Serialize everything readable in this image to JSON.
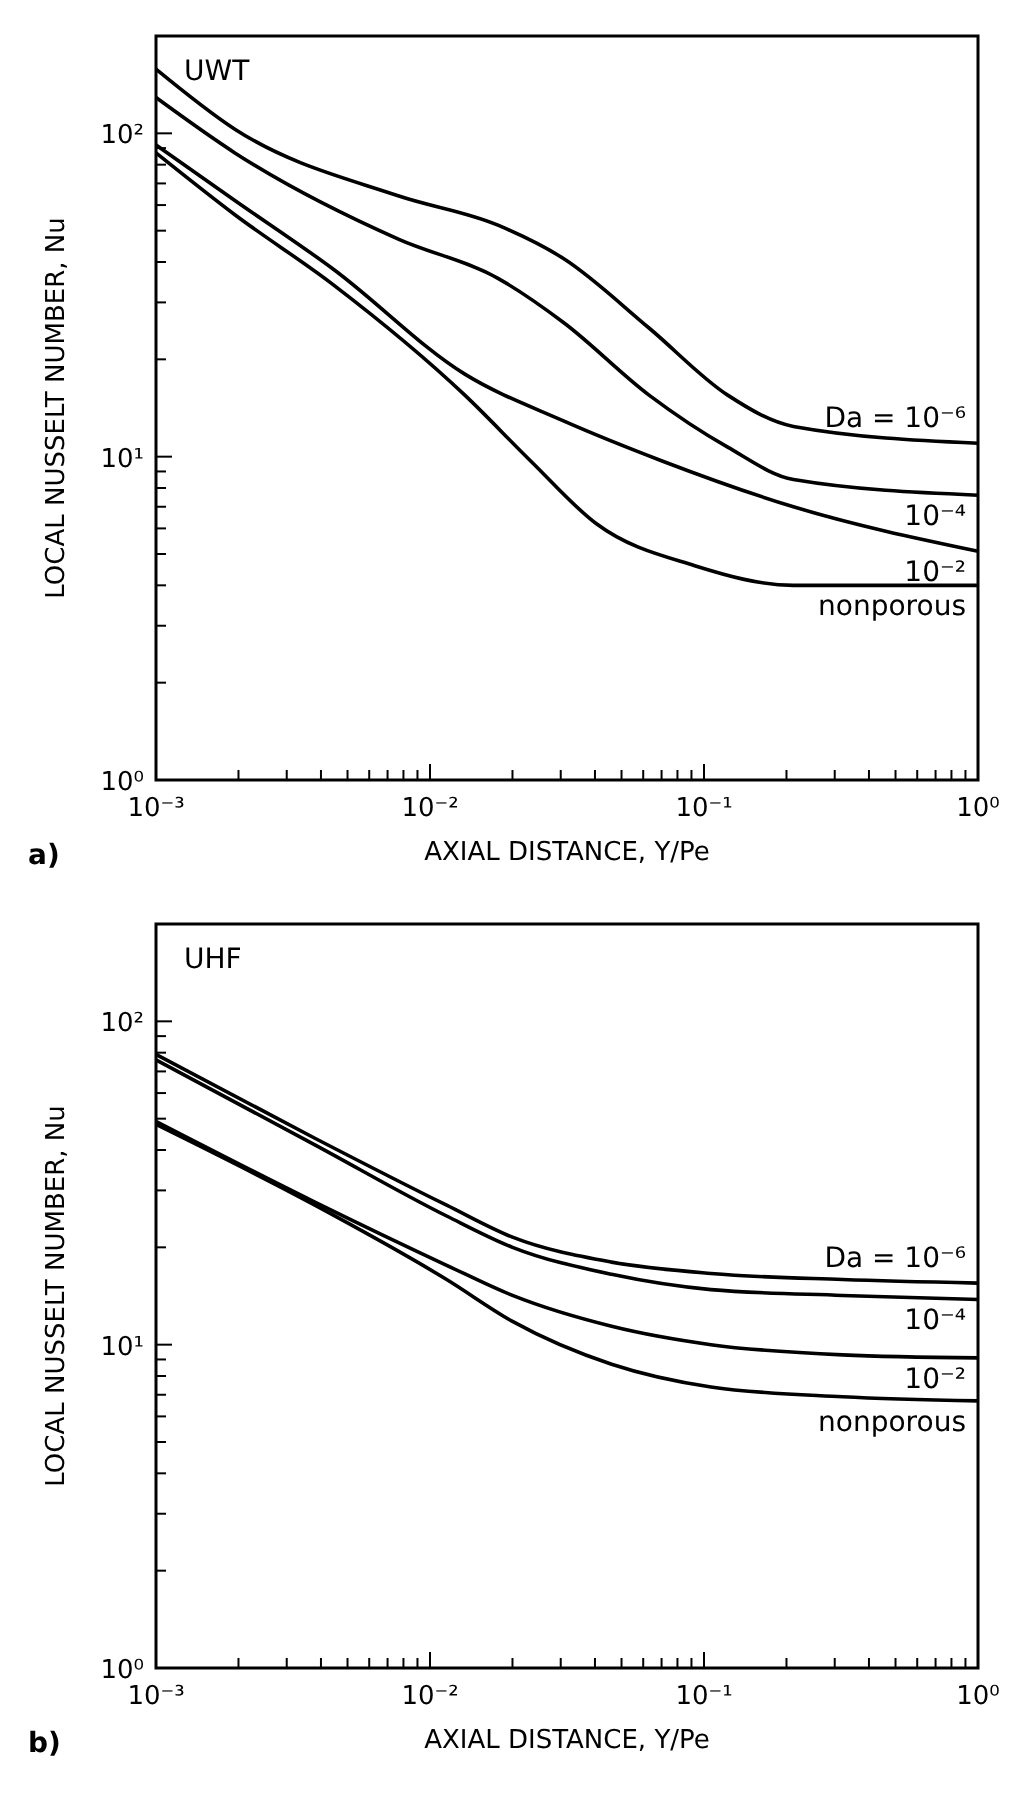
{
  "chart_data": [
    {
      "type": "line",
      "xlabel": "AXIAL DISTANCE, Y/Pe",
      "ylabel": "LOCAL NUSSELT NUMBER, Nu",
      "log": "xy",
      "annotations": [
        "UWT",
        "a)"
      ],
      "xlim": [
        0.001,
        1
      ],
      "ylim": [
        1,
        200
      ],
      "xticks": [
        {
          "value": 0.001,
          "label": "10⁻³"
        },
        {
          "value": 0.002,
          "label": null
        },
        {
          "value": 0.003,
          "label": null
        },
        {
          "value": 0.004,
          "label": null
        },
        {
          "value": 0.005,
          "label": null
        },
        {
          "value": 0.006,
          "label": null
        },
        {
          "value": 0.007,
          "label": null
        },
        {
          "value": 0.008,
          "label": null
        },
        {
          "value": 0.009,
          "label": null
        },
        {
          "value": 0.01,
          "label": "10⁻²"
        },
        {
          "value": 0.02,
          "label": null
        },
        {
          "value": 0.03,
          "label": null
        },
        {
          "value": 0.04,
          "label": null
        },
        {
          "value": 0.05,
          "label": null
        },
        {
          "value": 0.06,
          "label": null
        },
        {
          "value": 0.07,
          "label": null
        },
        {
          "value": 0.08,
          "label": null
        },
        {
          "value": 0.09,
          "label": null
        },
        {
          "value": 0.1,
          "label": "10⁻¹"
        },
        {
          "value": 0.2,
          "label": null
        },
        {
          "value": 0.3,
          "label": null
        },
        {
          "value": 0.4,
          "label": null
        },
        {
          "value": 0.5,
          "label": null
        },
        {
          "value": 0.6,
          "label": null
        },
        {
          "value": 0.7,
          "label": null
        },
        {
          "value": 0.8,
          "label": null
        },
        {
          "value": 0.9,
          "label": null
        },
        {
          "value": 1,
          "label": "10⁰"
        }
      ],
      "yticks": [
        {
          "value": 1,
          "label": "10⁰"
        },
        {
          "value": 2,
          "label": null
        },
        {
          "value": 3,
          "label": null
        },
        {
          "value": 4,
          "label": null
        },
        {
          "value": 5,
          "label": null
        },
        {
          "value": 6,
          "label": null
        },
        {
          "value": 7,
          "label": null
        },
        {
          "value": 8,
          "label": null
        },
        {
          "value": 9,
          "label": null
        },
        {
          "value": 10,
          "label": "10¹"
        },
        {
          "value": 20,
          "label": null
        },
        {
          "value": 30,
          "label": null
        },
        {
          "value": 40,
          "label": null
        },
        {
          "value": 50,
          "label": null
        },
        {
          "value": 60,
          "label": null
        },
        {
          "value": 70,
          "label": null
        },
        {
          "value": 80,
          "label": null
        },
        {
          "value": 90,
          "label": null
        },
        {
          "value": 100,
          "label": "10²"
        }
      ],
      "series": [
        {
          "name": "Da = 10⁻⁶",
          "color": "#000000",
          "x": [
            0.001,
            0.00194,
            0.0077,
            0.0177,
            0.0307,
            0.063,
            0.122,
            0.212,
            1
          ],
          "values": [
            158,
            103,
            64,
            52,
            41,
            25,
            15.5,
            12.4,
            11
          ]
        },
        {
          "name": "10⁻⁴",
          "color": "#000000",
          "x": [
            0.001,
            0.00194,
            0.0077,
            0.0177,
            0.0307,
            0.063,
            0.122,
            0.212,
            1
          ],
          "values": [
            129,
            87,
            47,
            35.6,
            26,
            15.5,
            10.7,
            8.5,
            7.6
          ]
        },
        {
          "name": "10⁻²",
          "color": "#000000",
          "x": [
            0.001,
            0.00194,
            0.00444,
            0.0134,
            0.0307,
            0.0703,
            0.212,
            1
          ],
          "values": [
            92,
            62,
            38,
            18,
            12.9,
            9.7,
            7.0,
            5.1
          ]
        },
        {
          "name": "nonporous",
          "color": "#000000",
          "x": [
            0.001,
            0.00194,
            0.00444,
            0.0134,
            0.0233,
            0.0405,
            0.0925,
            0.212,
            1
          ],
          "values": [
            87,
            56,
            34,
            15.5,
            9.7,
            6.2,
            4.6,
            4.0,
            4.0
          ]
        }
      ]
    },
    {
      "type": "line",
      "xlabel": "AXIAL DISTANCE, Y/Pe",
      "ylabel": "LOCAL NUSSELT NUMBER, Nu",
      "log": "xy",
      "annotations": [
        "UHF",
        "b)"
      ],
      "xlim": [
        0.001,
        1
      ],
      "ylim": [
        1,
        200
      ],
      "xticks": [
        {
          "value": 0.001,
          "label": "10⁻³"
        },
        {
          "value": 0.002,
          "label": null
        },
        {
          "value": 0.003,
          "label": null
        },
        {
          "value": 0.004,
          "label": null
        },
        {
          "value": 0.005,
          "label": null
        },
        {
          "value": 0.006,
          "label": null
        },
        {
          "value": 0.007,
          "label": null
        },
        {
          "value": 0.008,
          "label": null
        },
        {
          "value": 0.009,
          "label": null
        },
        {
          "value": 0.01,
          "label": "10⁻²"
        },
        {
          "value": 0.02,
          "label": null
        },
        {
          "value": 0.03,
          "label": null
        },
        {
          "value": 0.04,
          "label": null
        },
        {
          "value": 0.05,
          "label": null
        },
        {
          "value": 0.06,
          "label": null
        },
        {
          "value": 0.07,
          "label": null
        },
        {
          "value": 0.08,
          "label": null
        },
        {
          "value": 0.09,
          "label": null
        },
        {
          "value": 0.1,
          "label": "10⁻¹"
        },
        {
          "value": 0.2,
          "label": null
        },
        {
          "value": 0.3,
          "label": null
        },
        {
          "value": 0.4,
          "label": null
        },
        {
          "value": 0.5,
          "label": null
        },
        {
          "value": 0.6,
          "label": null
        },
        {
          "value": 0.7,
          "label": null
        },
        {
          "value": 0.8,
          "label": null
        },
        {
          "value": 0.9,
          "label": null
        },
        {
          "value": 1,
          "label": "10⁰"
        }
      ],
      "yticks": [
        {
          "value": 1,
          "label": "10⁰"
        },
        {
          "value": 2,
          "label": null
        },
        {
          "value": 3,
          "label": null
        },
        {
          "value": 4,
          "label": null
        },
        {
          "value": 5,
          "label": null
        },
        {
          "value": 6,
          "label": null
        },
        {
          "value": 7,
          "label": null
        },
        {
          "value": 8,
          "label": null
        },
        {
          "value": 9,
          "label": null
        },
        {
          "value": 10,
          "label": "10¹"
        },
        {
          "value": 20,
          "label": null
        },
        {
          "value": 30,
          "label": null
        },
        {
          "value": 40,
          "label": null
        },
        {
          "value": 50,
          "label": null
        },
        {
          "value": 60,
          "label": null
        },
        {
          "value": 70,
          "label": null
        },
        {
          "value": 80,
          "label": null
        },
        {
          "value": 90,
          "label": null
        },
        {
          "value": 100,
          "label": "10²"
        }
      ],
      "series": [
        {
          "name": "Da = 10⁻⁶",
          "color": "#000000",
          "x": [
            0.001,
            0.0038,
            0.0115,
            0.02,
            0.046,
            0.106,
            0.32,
            1
          ],
          "values": [
            79,
            43.5,
            27,
            21.5,
            18,
            16.6,
            15.9,
            15.5
          ]
        },
        {
          "name": "10⁻⁴",
          "color": "#000000",
          "x": [
            0.001,
            0.0038,
            0.0115,
            0.02,
            0.046,
            0.106,
            0.32,
            1
          ],
          "values": [
            76,
            41.5,
            25,
            20,
            16.5,
            14.8,
            14.2,
            13.8
          ]
        },
        {
          "name": "10⁻²",
          "color": "#000000",
          "x": [
            0.001,
            0.0038,
            0.0115,
            0.02,
            0.046,
            0.106,
            0.32,
            1
          ],
          "values": [
            49,
            27.6,
            17.6,
            14.2,
            11.4,
            10,
            9.3,
            9.1
          ]
        },
        {
          "name": "nonporous",
          "color": "#000000",
          "x": [
            0.001,
            0.0038,
            0.0115,
            0.02,
            0.046,
            0.106,
            0.32,
            1
          ],
          "values": [
            48,
            27,
            15.9,
            11.8,
            8.7,
            7.4,
            6.9,
            6.7
          ]
        }
      ]
    }
  ]
}
